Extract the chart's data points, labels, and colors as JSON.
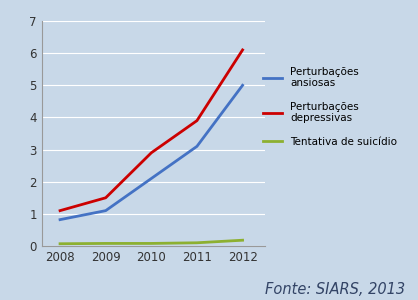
{
  "years": [
    2008,
    2009,
    2010,
    2011,
    2012
  ],
  "ansiosas": [
    0.82,
    1.1,
    2.1,
    3.1,
    5.0
  ],
  "depressivas": [
    1.1,
    1.5,
    2.9,
    3.9,
    6.1
  ],
  "suicidio": [
    0.07,
    0.08,
    0.08,
    0.1,
    0.18
  ],
  "color_ansiosas": "#4472C4",
  "color_depressivas": "#CC0000",
  "color_suicidio": "#8DB030",
  "bg_color": "#C8D8E8",
  "ylim": [
    0,
    7
  ],
  "yticks": [
    0,
    1,
    2,
    3,
    4,
    5,
    6,
    7
  ],
  "legend_labels": [
    "Perturbações\nansiosas",
    "Perturbações\ndepressivas",
    "Tentativa de suicídio"
  ],
  "fonte": "Fonte: SIARS, 2013"
}
